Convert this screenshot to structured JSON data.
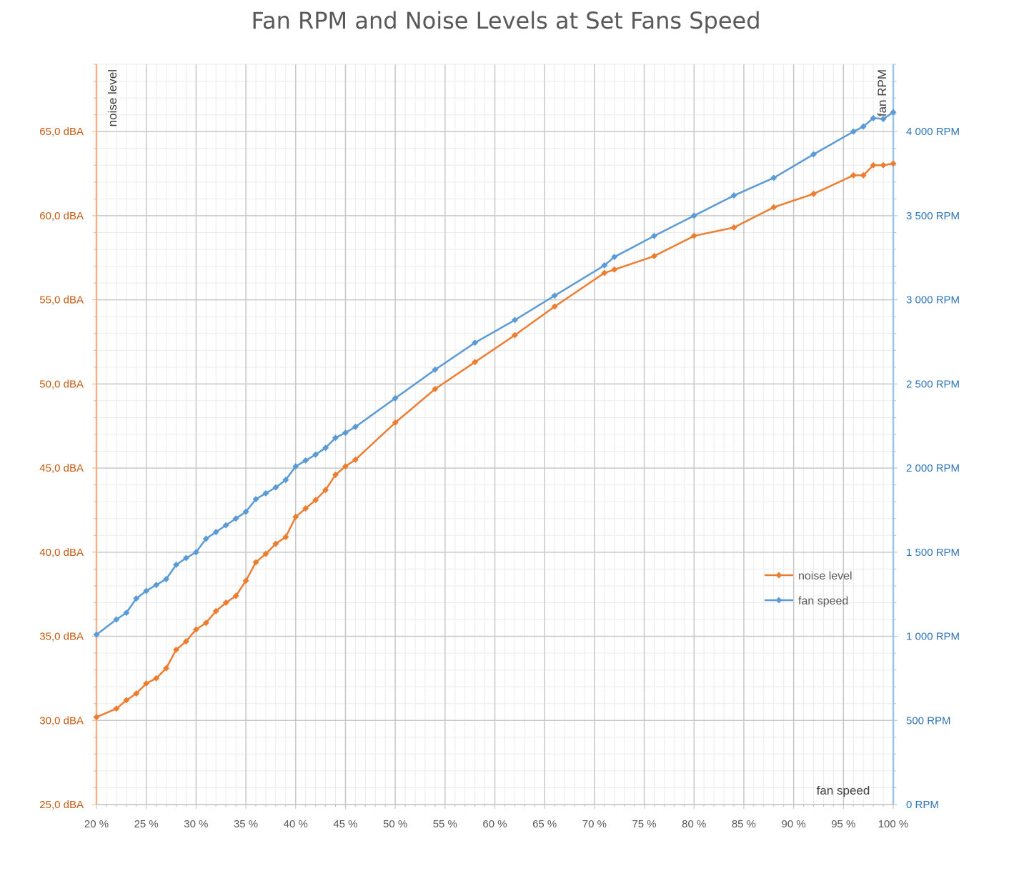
{
  "chart_data": {
    "type": "line",
    "title": "Fan RPM and Noise Levels at Set Fans Speed",
    "xlabel": "fan speed",
    "ylabel_left": "noise level",
    "ylabel_right": "fan RPM",
    "xlim": [
      20,
      100
    ],
    "ylim_left": [
      25,
      69
    ],
    "ylim_right": [
      0,
      4400
    ],
    "x_ticks": [
      "20 %",
      "25 %",
      "30 %",
      "35 %",
      "40 %",
      "45 %",
      "50 %",
      "55 %",
      "60 %",
      "65 %",
      "70 %",
      "75 %",
      "80 %",
      "85 %",
      "90 %",
      "95 %",
      "100 %"
    ],
    "y_left_ticks": [
      "25,0 dBA",
      "30,0 dBA",
      "35,0 dBA",
      "40,0 dBA",
      "45,0 dBA",
      "50,0 dBA",
      "55,0 dBA",
      "60,0 dBA",
      "65,0 dBA"
    ],
    "y_right_ticks": [
      "0 RPM",
      "500 RPM",
      "1 000 RPM",
      "1 500 RPM",
      "2 000 RPM",
      "2 500 RPM",
      "3 000 RPM",
      "3 500 RPM",
      "4 000 RPM"
    ],
    "grid": true,
    "legend_position": "right",
    "series": [
      {
        "name": "noise level",
        "axis": "left",
        "color": "#ed7d31",
        "x": [
          20,
          22,
          23,
          24,
          25,
          26,
          27,
          28,
          29,
          30,
          31,
          32,
          33,
          34,
          35,
          36,
          37,
          38,
          39,
          40,
          41,
          42,
          43,
          44,
          45,
          46,
          50,
          54,
          58,
          62,
          66,
          71,
          72,
          76,
          80,
          84,
          88,
          92,
          96,
          97,
          98,
          99,
          100
        ],
        "y": [
          30.2,
          30.7,
          31.2,
          31.6,
          32.2,
          32.5,
          33.1,
          34.2,
          34.7,
          35.4,
          35.8,
          36.5,
          37.0,
          37.4,
          38.3,
          39.4,
          39.9,
          40.5,
          40.9,
          42.1,
          42.6,
          43.1,
          43.7,
          44.6,
          45.1,
          45.5,
          47.7,
          49.7,
          51.3,
          52.9,
          54.6,
          56.6,
          56.8,
          57.6,
          58.8,
          59.3,
          60.5,
          61.3,
          62.4,
          62.4,
          63.0,
          63.0,
          63.1
        ]
      },
      {
        "name": "fan speed",
        "axis": "right",
        "color": "#5b9bd5",
        "x": [
          20,
          22,
          23,
          24,
          25,
          26,
          27,
          28,
          29,
          30,
          31,
          32,
          33,
          34,
          35,
          36,
          37,
          38,
          39,
          40,
          41,
          42,
          43,
          44,
          45,
          46,
          50,
          54,
          58,
          62,
          66,
          71,
          72,
          76,
          80,
          84,
          88,
          92,
          96,
          97,
          98,
          99,
          100
        ],
        "y": [
          1010,
          1100,
          1140,
          1225,
          1270,
          1305,
          1340,
          1425,
          1465,
          1500,
          1580,
          1620,
          1660,
          1700,
          1740,
          1815,
          1850,
          1885,
          1930,
          2010,
          2045,
          2080,
          2120,
          2180,
          2210,
          2245,
          2415,
          2585,
          2745,
          2880,
          3025,
          3205,
          3255,
          3380,
          3500,
          3620,
          3725,
          3865,
          4000,
          4030,
          4080,
          4075,
          4115
        ]
      }
    ]
  }
}
